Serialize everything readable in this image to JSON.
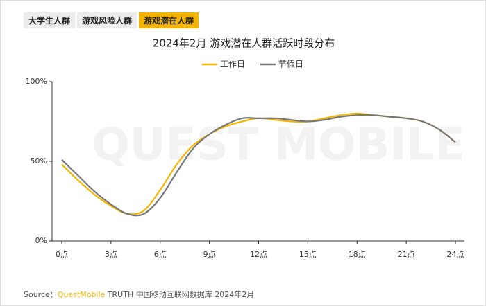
{
  "tabs": [
    "大学生人群",
    "游戏风险人群",
    "游戏潜在人群"
  ],
  "watermark": "QUEST MOBILE",
  "source": {
    "label": "Source：",
    "brand": "QuestMobile",
    "text": " TRUTH 中国移动互联网数据库 2024年2月"
  },
  "chart_data": {
    "type": "line",
    "title": "2024年2月 游戏潜在人群活跃时段分布",
    "x": [
      0,
      1,
      2,
      3,
      4,
      5,
      6,
      7,
      8,
      9,
      10,
      11,
      12,
      13,
      14,
      15,
      16,
      17,
      18,
      19,
      20,
      21,
      22,
      23,
      24
    ],
    "series": [
      {
        "name": "工作日",
        "color": "#f5b400",
        "values": [
          48,
          38,
          29,
          22,
          17,
          19,
          32,
          48,
          60,
          67,
          72,
          75,
          77,
          76,
          75,
          75,
          77,
          79,
          80,
          79,
          78,
          77,
          75,
          70,
          62
        ]
      },
      {
        "name": "节假日",
        "color": "#777777",
        "values": [
          51,
          41,
          31,
          23,
          17,
          17,
          27,
          43,
          58,
          67,
          73,
          77,
          77,
          77,
          76,
          75,
          76,
          78,
          79,
          79,
          78,
          77,
          75,
          70,
          62
        ]
      }
    ],
    "xlim": [
      0,
      24
    ],
    "xticks": [
      {
        "value": 0,
        "label": "0点"
      },
      {
        "value": 3,
        "label": "3点"
      },
      {
        "value": 6,
        "label": "6点"
      },
      {
        "value": 9,
        "label": "9点"
      },
      {
        "value": 12,
        "label": "12点"
      },
      {
        "value": 15,
        "label": "15点"
      },
      {
        "value": 18,
        "label": "18点"
      },
      {
        "value": 21,
        "label": "21点"
      },
      {
        "value": 24,
        "label": "24点"
      }
    ],
    "ylim": [
      0,
      100
    ],
    "yticks": [
      {
        "value": 0,
        "label": "0%"
      },
      {
        "value": 50,
        "label": "50%"
      },
      {
        "value": 100,
        "label": "100%"
      }
    ],
    "legend": "top"
  }
}
